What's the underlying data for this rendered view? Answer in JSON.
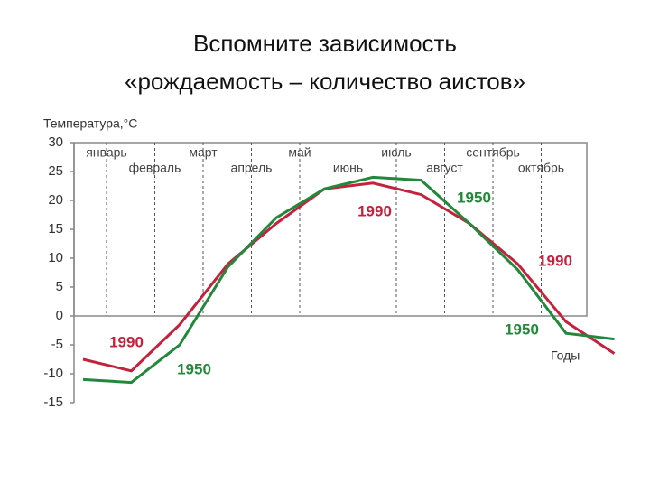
{
  "slide_title": [
    "Вспомните зависимость",
    "«рождаемость – количество аистов»"
  ],
  "chart_data": {
    "type": "line",
    "y_axis_label": "Температура,°С",
    "x_axis_label": "Годы",
    "categories": [
      "январь",
      "февраль",
      "март",
      "апрель",
      "май",
      "июнь",
      "июль",
      "август",
      "сентябрь",
      "октябрь",
      null,
      null
    ],
    "series": [
      {
        "name": "1990",
        "color": "#c4213c",
        "values": [
          -7.5,
          -9.5,
          -1.5,
          9,
          16,
          22,
          23,
          21,
          16,
          9,
          -1,
          -6.5
        ]
      },
      {
        "name": "1950",
        "color": "#23883c",
        "values": [
          -11,
          -11.5,
          -5,
          8.5,
          17,
          22,
          24,
          23.5,
          16,
          8,
          -3,
          -4
        ]
      }
    ],
    "annotations": [
      {
        "text": "1990",
        "series": 0
      },
      {
        "text": "1990",
        "series": 0
      },
      {
        "text": "1950",
        "series": 1
      },
      {
        "text": "1950",
        "series": 1
      }
    ],
    "ylim": [
      -15,
      30
    ],
    "yticks": [
      -15,
      -10,
      -5,
      0,
      5,
      10,
      15,
      20,
      25,
      30
    ],
    "grid": true
  }
}
